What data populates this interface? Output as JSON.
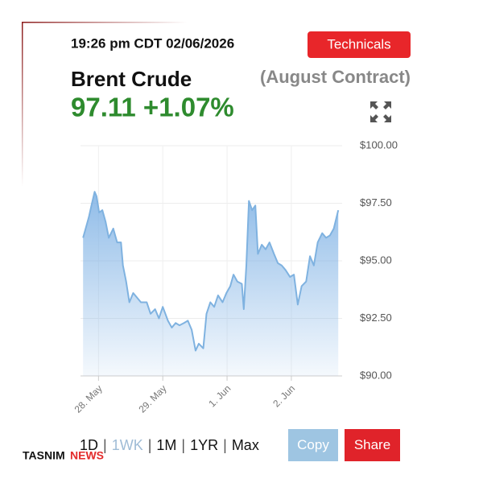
{
  "header": {
    "timestamp": "19:26 pm CDT 02/06/2026",
    "button": "Technicals",
    "instrument": "Brent Crude",
    "contract": "(August Contract)",
    "quote": "97.11 +1.07%"
  },
  "chart_data": {
    "type": "area",
    "x": [
      -0.24,
      -0.2,
      -0.15,
      -0.11,
      -0.06,
      -0.03,
      0.01,
      0.06,
      0.11,
      0.16,
      0.23,
      0.29,
      0.35,
      0.38,
      0.43,
      0.48,
      0.54,
      0.6,
      0.66,
      0.75,
      0.81,
      0.88,
      0.94,
      1.0,
      1.08,
      1.14,
      1.2,
      1.26,
      1.33,
      1.39,
      1.45,
      1.51,
      1.56,
      1.63,
      1.68,
      1.74,
      1.8,
      1.86,
      1.93,
      1.99,
      2.05,
      2.1,
      2.16,
      2.23,
      2.26,
      2.3,
      2.34,
      2.39,
      2.44,
      2.48,
      2.54,
      2.6,
      2.66,
      2.73,
      2.79,
      2.85,
      2.91,
      2.98,
      3.04,
      3.1,
      3.16,
      3.23,
      3.29,
      3.35,
      3.41,
      3.48,
      3.54,
      3.6,
      3.66,
      3.73
    ],
    "series": [
      {
        "color": "#7fb2e0",
        "values": [
          96.0,
          96.4,
          96.9,
          97.4,
          98.0,
          97.8,
          97.1,
          97.2,
          96.7,
          96.0,
          96.4,
          95.8,
          95.8,
          94.8,
          94.1,
          93.2,
          93.6,
          93.4,
          93.2,
          93.2,
          92.7,
          92.9,
          92.5,
          93.0,
          92.4,
          92.1,
          92.3,
          92.2,
          92.3,
          92.4,
          92.0,
          91.1,
          91.4,
          91.2,
          92.7,
          93.2,
          93.0,
          93.5,
          93.2,
          93.6,
          93.9,
          94.4,
          94.1,
          94.0,
          92.9,
          94.8,
          97.6,
          97.2,
          97.4,
          95.3,
          95.7,
          95.5,
          95.8,
          95.3,
          94.9,
          94.8,
          94.6,
          94.3,
          94.4,
          93.1,
          93.9,
          94.1,
          95.2,
          94.8,
          95.8,
          96.2,
          96.0,
          96.1,
          96.4,
          97.2
        ]
      }
    ],
    "xlim": [
      -0.28,
      3.79
    ],
    "xticks": [
      {
        "value": 0,
        "label": "28. May"
      },
      {
        "value": 1,
        "label": "29. May"
      },
      {
        "value": 2,
        "label": "1. Jun"
      },
      {
        "value": 3,
        "label": "2. Jun"
      }
    ],
    "ylim": [
      90,
      100
    ],
    "yticks": [
      {
        "value": 90,
        "label": "$90.00"
      },
      {
        "value": 92.5,
        "label": "$92.50"
      },
      {
        "value": 95,
        "label": "$95.00"
      },
      {
        "value": 97.5,
        "label": "$97.50"
      },
      {
        "value": 100,
        "label": "$100.00"
      }
    ],
    "grid": true
  },
  "ranges": [
    "1D",
    "1WK",
    "1M",
    "1YR",
    "Max"
  ],
  "separator": "|",
  "buttons": [
    "Copy",
    "Share"
  ],
  "logo": {
    "name": "TASNIM",
    "suffix": "NEWS"
  }
}
